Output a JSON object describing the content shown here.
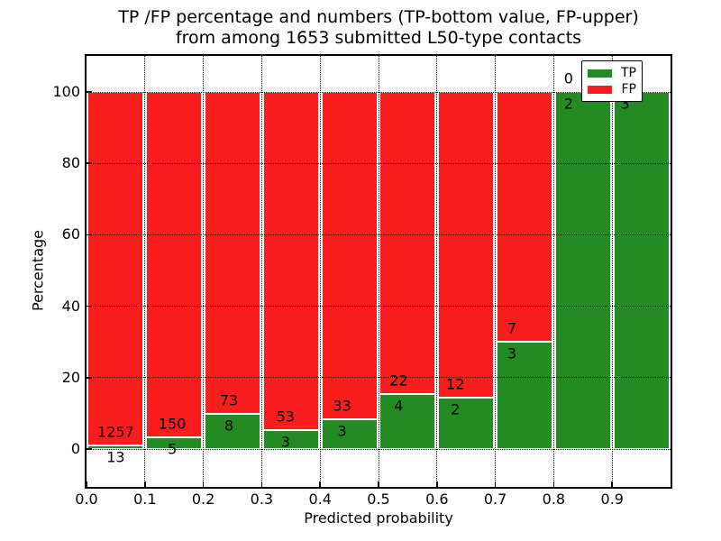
{
  "figure": {
    "title_line1": "TP /FP percentage and numbers (TP-bottom value, FP-upper)",
    "title_line2": "from among 1653 submitted L50-type contacts",
    "xlabel": "Predicted probability",
    "ylabel": "Percentage"
  },
  "legend": {
    "tp_label": "TP",
    "fp_label": "FP"
  },
  "colors": {
    "tp": "#228b22",
    "fp": "#fa1d1d",
    "grid": "#000000",
    "background": "#ffffff"
  },
  "chart_data": {
    "type": "bar",
    "stacked": true,
    "normalized_to_percent": true,
    "title": "TP /FP percentage and numbers (TP-bottom value, FP-upper) from among 1653 submitted L50-type contacts",
    "xlabel": "Predicted probability",
    "ylabel": "Percentage",
    "total_contacts": 1653,
    "categories": [
      "0.0-0.1",
      "0.1-0.2",
      "0.2-0.3",
      "0.3-0.4",
      "0.4-0.5",
      "0.5-0.6",
      "0.6-0.7",
      "0.7-0.8",
      "0.8-0.9",
      "0.9-1.0"
    ],
    "x_tick_labels": [
      "0.0",
      "0.1",
      "0.2",
      "0.3",
      "0.4",
      "0.5",
      "0.6",
      "0.7",
      "0.8",
      "0.9"
    ],
    "y_ticks": [
      0,
      20,
      40,
      60,
      80,
      100
    ],
    "y_tick_labels": [
      "0",
      "20",
      "40",
      "60",
      "80",
      "100"
    ],
    "xlim": [
      0.0,
      1.0
    ],
    "ylim": [
      -11,
      110
    ],
    "grid": true,
    "legend_position": "upper right",
    "series": [
      {
        "name": "TP",
        "color": "#228b22",
        "counts": [
          13,
          5,
          8,
          3,
          3,
          4,
          2,
          3,
          2,
          3
        ],
        "percentages": [
          1.02,
          3.23,
          9.88,
          5.36,
          8.33,
          15.38,
          14.29,
          30.0,
          100.0,
          100.0
        ]
      },
      {
        "name": "FP",
        "color": "#fa1d1d",
        "counts": [
          1257,
          150,
          73,
          53,
          33,
          22,
          12,
          7,
          0,
          0
        ],
        "percentages": [
          98.98,
          96.77,
          90.12,
          94.64,
          91.67,
          84.62,
          85.71,
          70.0,
          0.0,
          0.0
        ]
      }
    ]
  }
}
